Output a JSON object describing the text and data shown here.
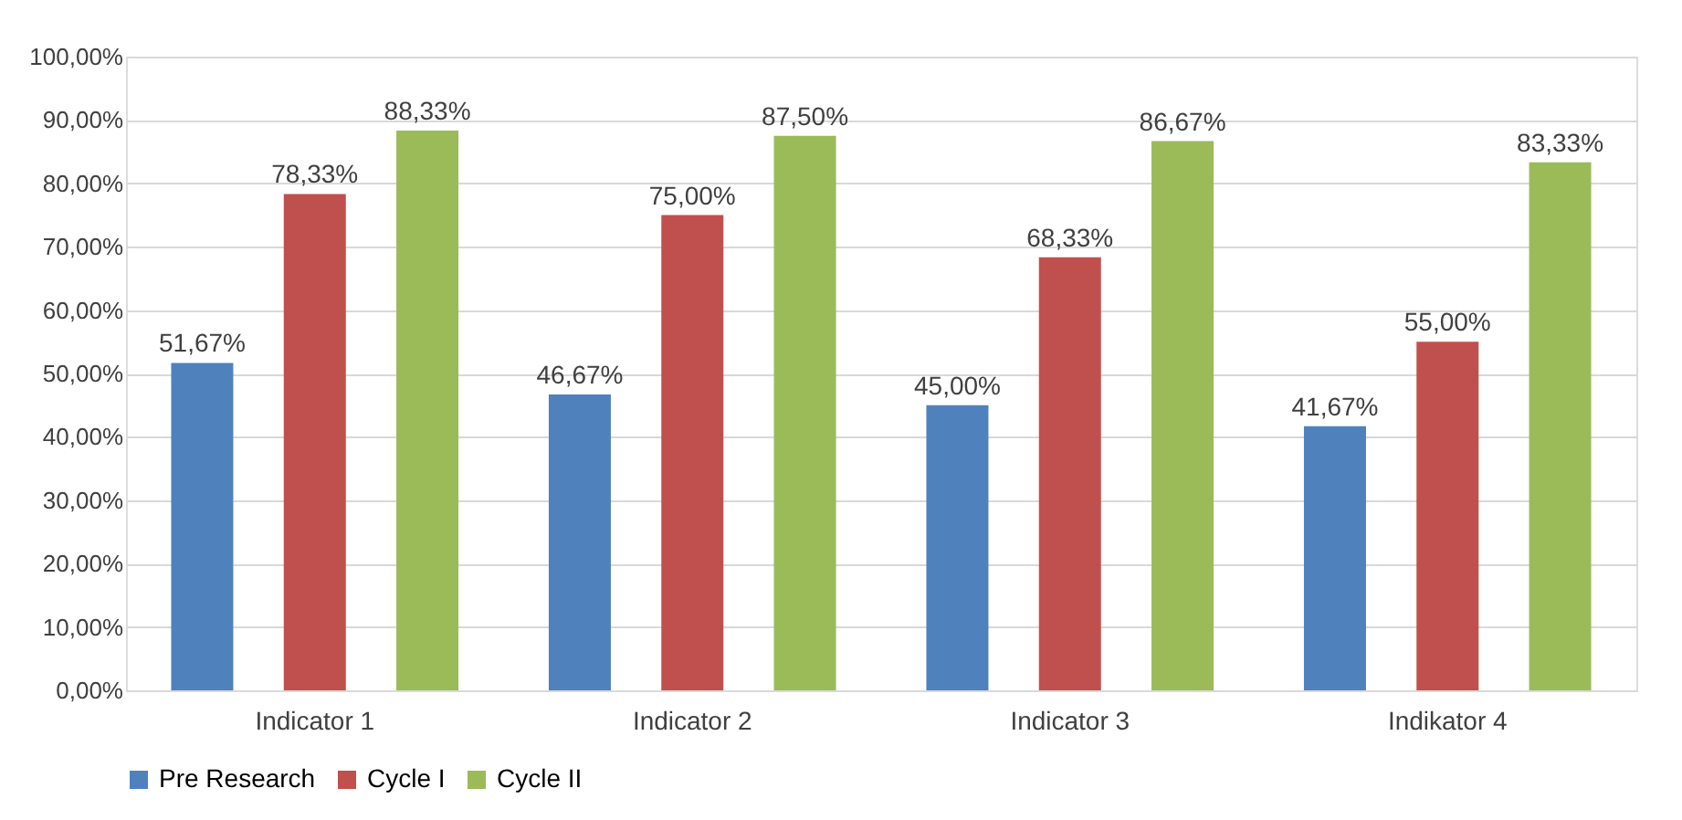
{
  "chart_data": {
    "type": "bar",
    "categories": [
      "Indicator 1",
      "Indicator 2",
      "Indicator 3",
      "Indikator 4"
    ],
    "series": [
      {
        "name": "Pre Research",
        "color": "#4f81bd",
        "values": [
          51.67,
          46.67,
          45.0,
          41.67
        ],
        "value_labels": [
          "51,67%",
          "46,67%",
          "45,00%",
          "41,67%"
        ]
      },
      {
        "name": "Cycle I",
        "color": "#c0504d",
        "values": [
          78.33,
          75.0,
          68.33,
          55.0
        ],
        "value_labels": [
          "78,33%",
          "75,00%",
          "68,33%",
          "55,00%"
        ]
      },
      {
        "name": "Cycle II",
        "color": "#9bbb59",
        "values": [
          88.33,
          87.5,
          86.67,
          83.33
        ],
        "value_labels": [
          "88,33%",
          "87,50%",
          "86,67%",
          "83,33%"
        ]
      }
    ],
    "ylim": [
      0,
      100
    ],
    "yticks": [
      {
        "value": 0,
        "label": "0,00%"
      },
      {
        "value": 10,
        "label": "10,00%"
      },
      {
        "value": 20,
        "label": "20,00%"
      },
      {
        "value": 30,
        "label": "30,00%"
      },
      {
        "value": 40,
        "label": "40,00%"
      },
      {
        "value": 50,
        "label": "50,00%"
      },
      {
        "value": 60,
        "label": "60,00%"
      },
      {
        "value": 70,
        "label": "70,00%"
      },
      {
        "value": 80,
        "label": "80,00%"
      },
      {
        "value": 90,
        "label": "90,00%"
      },
      {
        "value": 100,
        "label": "100,00%"
      }
    ],
    "grid": "y",
    "legend": "bottom"
  }
}
